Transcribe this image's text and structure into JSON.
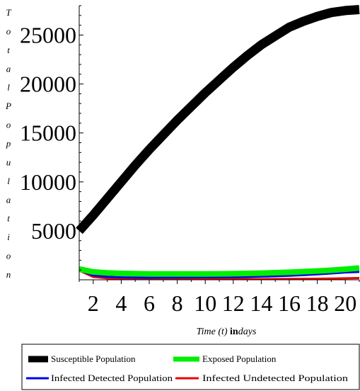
{
  "chart_data": {
    "type": "line",
    "xlabel": {
      "prefix": "Time (",
      "var": "t",
      "mid": ") ",
      "bold": "in",
      "unit": "days"
    },
    "ylabel": "Total Population",
    "xlim": [
      1,
      21
    ],
    "ylim": [
      0,
      28000
    ],
    "xticks": [
      2,
      4,
      6,
      8,
      10,
      12,
      14,
      16,
      18,
      20
    ],
    "yticks": [
      5000,
      10000,
      15000,
      20000,
      25000
    ],
    "grid": false,
    "legend_position": "bottom",
    "x": [
      1,
      2,
      3,
      4,
      5,
      6,
      7,
      8,
      9,
      10,
      11,
      12,
      13,
      14,
      15,
      16,
      17,
      18,
      19,
      20,
      21
    ],
    "series": [
      {
        "name": "Susceptible Population",
        "color": "#000000",
        "values": [
          5000,
          6600,
          8300,
          10000,
          11700,
          13300,
          14800,
          16300,
          17700,
          19100,
          20400,
          21700,
          22900,
          24000,
          24900,
          25800,
          26400,
          26900,
          27300,
          27500,
          27600
        ]
      },
      {
        "name": "Exposed Population",
        "color": "#00ee00",
        "values": [
          1100,
          800,
          700,
          650,
          620,
          600,
          600,
          600,
          600,
          600,
          610,
          620,
          650,
          680,
          720,
          770,
          830,
          900,
          980,
          1080,
          1200
        ]
      },
      {
        "name": "Infected Detected Population",
        "color": "#0000ee",
        "values": [
          1000,
          450,
          320,
          250,
          230,
          220,
          230,
          240,
          250,
          260,
          270,
          280,
          300,
          330,
          370,
          420,
          480,
          560,
          650,
          750,
          800
        ]
      },
      {
        "name": "Infected Undetected Population",
        "color": "#ee0000",
        "values": [
          950,
          300,
          150,
          100,
          80,
          70,
          70,
          70,
          70,
          70,
          70,
          70,
          70,
          75,
          80,
          90,
          100,
          110,
          130,
          150,
          180
        ]
      }
    ]
  }
}
